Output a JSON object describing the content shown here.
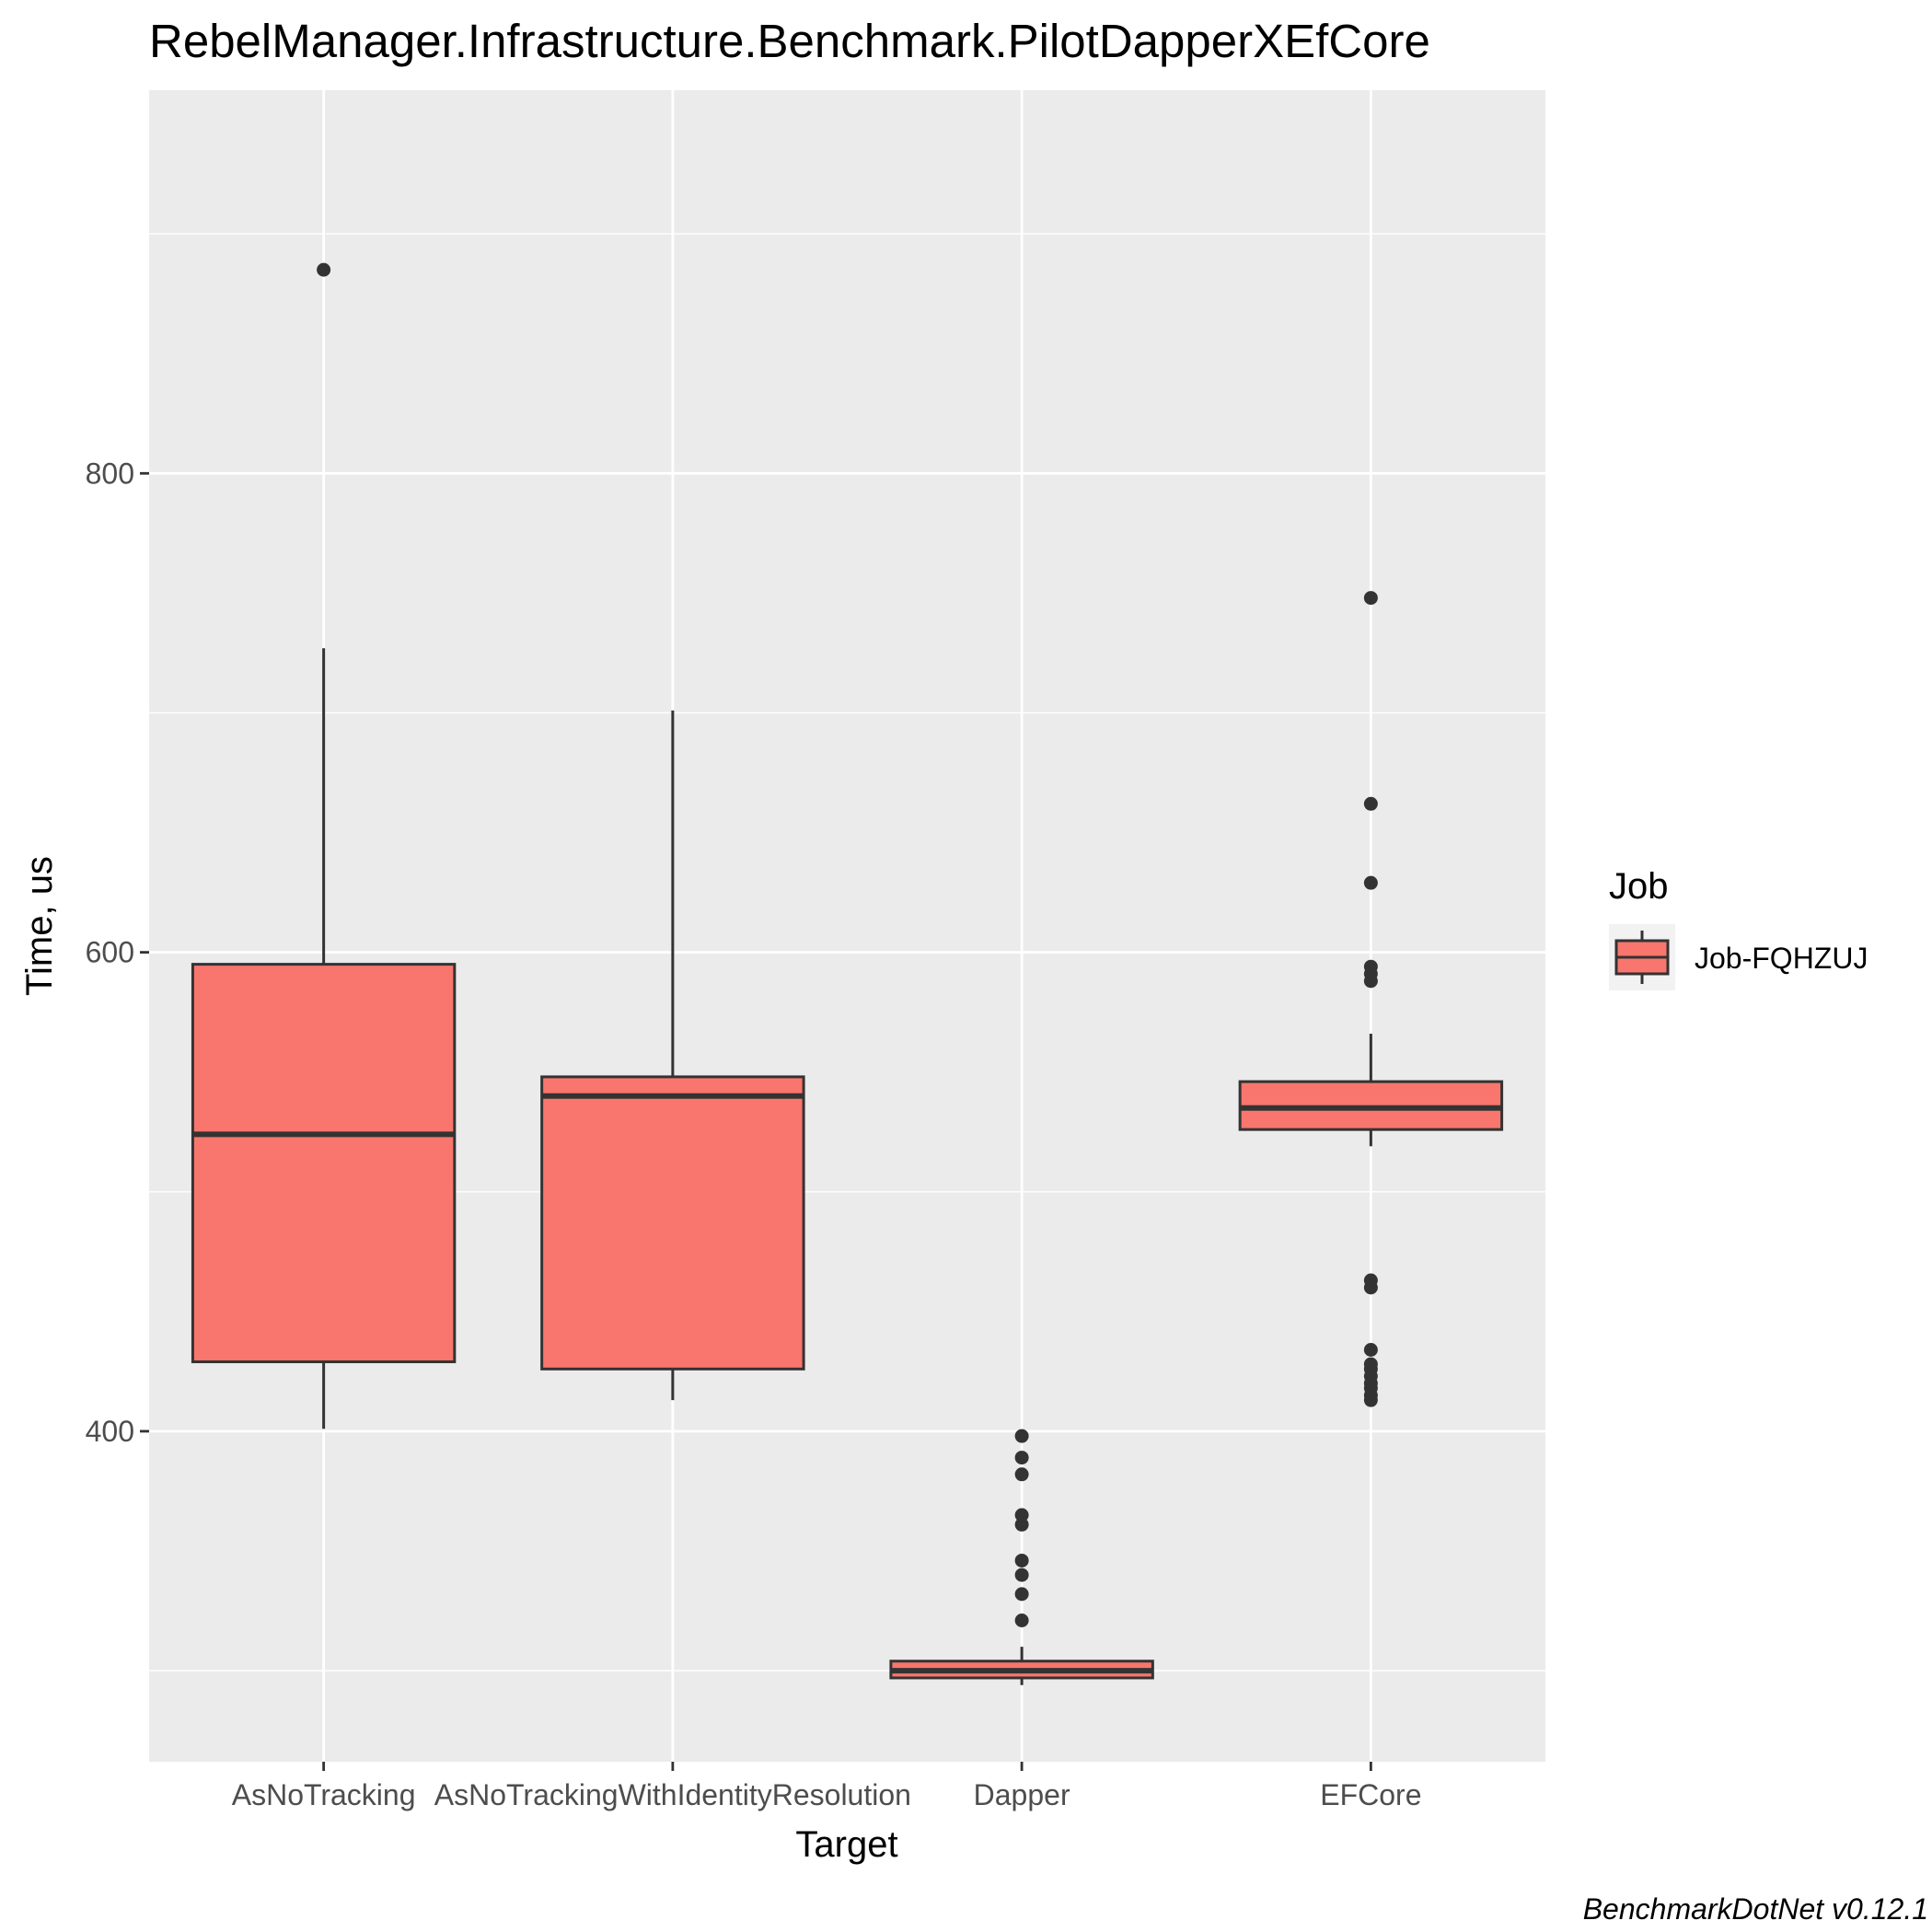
{
  "chart_data": {
    "type": "box",
    "title": "RebelManager.Infrastructure.Benchmark.PilotDapperXEfCore",
    "xlabel": "Target",
    "ylabel": "Time, us",
    "caption": "BenchmarkDotNet v0.12.1",
    "categories": [
      "AsNoTracking",
      "AsNoTrackingWithIdentityResolution",
      "Dapper",
      "EFCore"
    ],
    "ylim": [
      262,
      960
    ],
    "yticks": [
      400,
      600,
      800
    ],
    "grid": true,
    "legend": {
      "title": "Job",
      "position": "right",
      "entries": [
        "Job-FQHZUJ"
      ]
    },
    "series": [
      {
        "name": "Job-FQHZUJ",
        "color": "#F8766D",
        "boxes": [
          {
            "category": "AsNoTracking",
            "lower_whisker": 401,
            "q1": 429,
            "median": 524,
            "q3": 595,
            "upper_whisker": 727,
            "outliers": [
              885
            ]
          },
          {
            "category": "AsNoTrackingWithIdentityResolution",
            "lower_whisker": 413,
            "q1": 426,
            "median": 540,
            "q3": 548,
            "upper_whisker": 701,
            "outliers": []
          },
          {
            "category": "Dapper",
            "lower_whisker": 294,
            "q1": 297,
            "median": 300,
            "q3": 304,
            "upper_whisker": 310,
            "outliers": [
              321,
              332,
              340,
              346,
              361,
              365,
              382,
              389,
              398
            ]
          },
          {
            "category": "EFCore",
            "lower_whisker": 519,
            "q1": 526,
            "median": 535,
            "q3": 546,
            "upper_whisker": 566,
            "outliers": [
              413,
              415,
              418,
              420,
              423,
              426,
              428,
              434,
              460,
              463,
              588,
              591,
              594,
              629,
              662,
              748
            ]
          }
        ]
      }
    ]
  }
}
